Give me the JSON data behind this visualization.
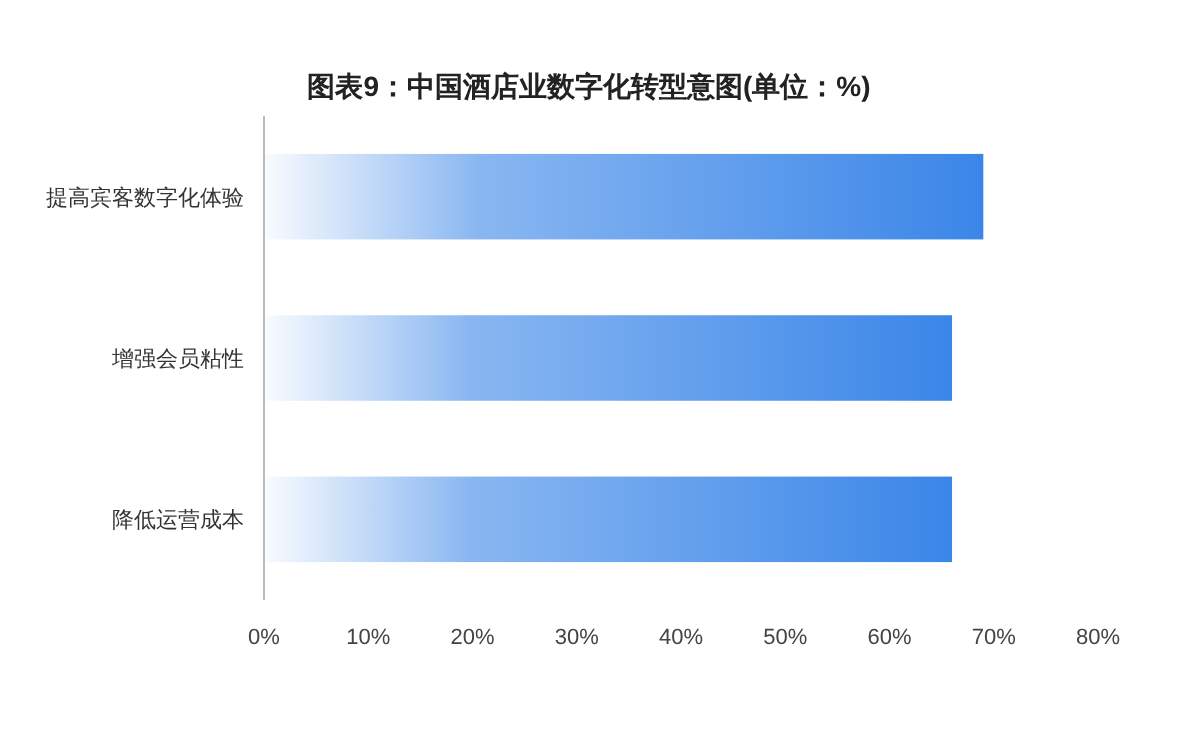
{
  "chart_data": {
    "type": "bar",
    "orientation": "horizontal",
    "title": "图表9：中国酒店业数字化转型意图(单位：%)",
    "categories": [
      "提高宾客数字化体验",
      "增强会员粘性",
      "降低运营成本"
    ],
    "values": [
      69,
      66,
      66
    ],
    "color": "#3a86e8",
    "xlim": [
      0,
      80
    ],
    "xticks": [
      {
        "value": 0,
        "label": "0%"
      },
      {
        "value": 10,
        "label": "10%"
      },
      {
        "value": 20,
        "label": "20%"
      },
      {
        "value": 30,
        "label": "30%"
      },
      {
        "value": 40,
        "label": "40%"
      },
      {
        "value": 50,
        "label": "50%"
      },
      {
        "value": 60,
        "label": "60%"
      },
      {
        "value": 70,
        "label": "70%"
      },
      {
        "value": 80,
        "label": "80%"
      }
    ],
    "grid": false
  }
}
